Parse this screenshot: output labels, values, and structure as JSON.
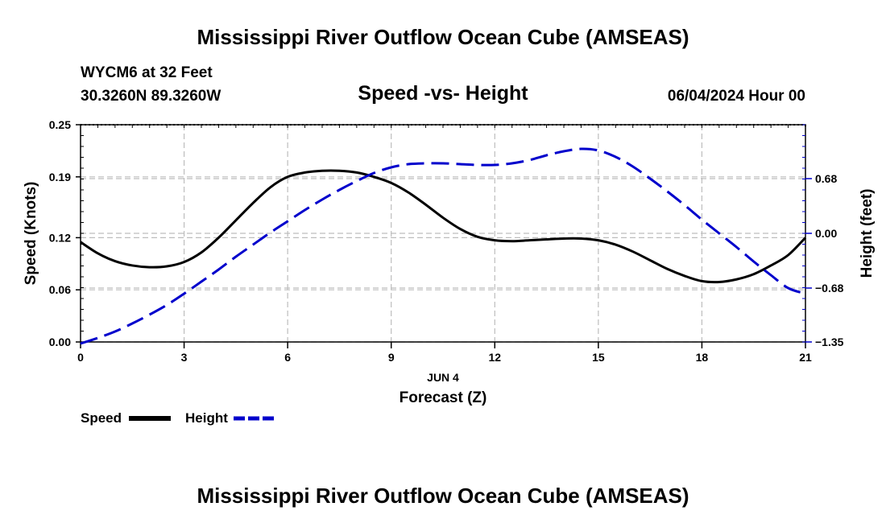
{
  "page": {
    "top_title": "Mississippi River Outflow Ocean Cube (AMSEAS)",
    "bottom_title": "Mississippi River Outflow Ocean Cube (AMSEAS)"
  },
  "station": {
    "name_depth": "WYCM6 at 32 Feet",
    "coordinates": "30.3260N  89.3260W"
  },
  "datetime": "06/04/2024 Hour 00",
  "chart_data": {
    "type": "line",
    "title": "Speed -vs- Height",
    "date_label": "JUN 4",
    "xlabel": "Forecast (Z)",
    "ylabel_left": "Speed (Knots)",
    "ylabel_right": "Height (feet)",
    "xlim": [
      0,
      21
    ],
    "x_ticks": [
      0,
      3,
      6,
      9,
      12,
      15,
      18,
      21
    ],
    "x_tick_labels": [
      "0",
      "3",
      "6",
      "9",
      "12",
      "15",
      "18",
      "21"
    ],
    "ylim_left": [
      0,
      0.25
    ],
    "y_ticks_left": [
      0.0,
      0.06,
      0.12,
      0.19,
      0.25
    ],
    "y_tick_labels_left": [
      "0.00",
      "0.06",
      "0.12",
      "0.19",
      "0.25"
    ],
    "ylim_right": [
      -1.35,
      1.35
    ],
    "y_ticks_right": [
      -1.35,
      -0.68,
      0.0,
      0.68
    ],
    "y_tick_labels_right": [
      "−1.35",
      "−0.68",
      "0.00",
      "0.68"
    ],
    "grid": true,
    "series": [
      {
        "name": "Speed",
        "axis": "left",
        "color": "#000000",
        "style": "solid",
        "x": [
          0,
          0.5,
          1,
          1.5,
          2,
          2.5,
          3,
          3.5,
          4,
          4.5,
          5,
          5.5,
          6,
          6.5,
          7,
          7.5,
          8,
          8.5,
          9,
          9.5,
          10,
          10.5,
          11,
          11.5,
          12,
          12.5,
          13,
          13.5,
          14,
          14.5,
          15,
          15.5,
          16,
          16.5,
          17,
          17.5,
          18,
          18.5,
          19,
          19.5,
          20,
          20.5,
          21
        ],
        "values": [
          0.115,
          0.102,
          0.093,
          0.088,
          0.086,
          0.087,
          0.092,
          0.103,
          0.12,
          0.14,
          0.16,
          0.178,
          0.19,
          0.195,
          0.197,
          0.197,
          0.195,
          0.19,
          0.183,
          0.172,
          0.158,
          0.143,
          0.13,
          0.121,
          0.117,
          0.116,
          0.117,
          0.118,
          0.119,
          0.119,
          0.117,
          0.112,
          0.104,
          0.094,
          0.084,
          0.076,
          0.07,
          0.069,
          0.072,
          0.078,
          0.088,
          0.1,
          0.12
        ]
      },
      {
        "name": "Height",
        "axis": "right",
        "color": "#0000cc",
        "style": "dashed",
        "x": [
          0,
          0.5,
          1,
          1.5,
          2,
          2.5,
          3,
          3.5,
          4,
          4.5,
          5,
          5.5,
          6,
          6.5,
          7,
          7.5,
          8,
          8.5,
          9,
          9.5,
          10,
          10.5,
          11,
          11.5,
          12,
          12.5,
          13,
          13.5,
          14,
          14.5,
          15,
          15.5,
          16,
          16.5,
          17,
          17.5,
          18,
          18.5,
          19,
          19.5,
          20,
          20.5,
          21
        ],
        "values": [
          -1.37,
          -1.3,
          -1.22,
          -1.12,
          -1.01,
          -0.89,
          -0.75,
          -0.6,
          -0.45,
          -0.29,
          -0.14,
          0.01,
          0.15,
          0.29,
          0.42,
          0.54,
          0.65,
          0.75,
          0.82,
          0.86,
          0.87,
          0.87,
          0.86,
          0.85,
          0.85,
          0.87,
          0.91,
          0.97,
          1.02,
          1.05,
          1.03,
          0.95,
          0.83,
          0.68,
          0.52,
          0.35,
          0.17,
          0.0,
          -0.17,
          -0.35,
          -0.52,
          -0.68,
          -0.75
        ]
      }
    ],
    "legend": [
      "Speed",
      "Height"
    ],
    "legend_position": "bottom-left"
  }
}
